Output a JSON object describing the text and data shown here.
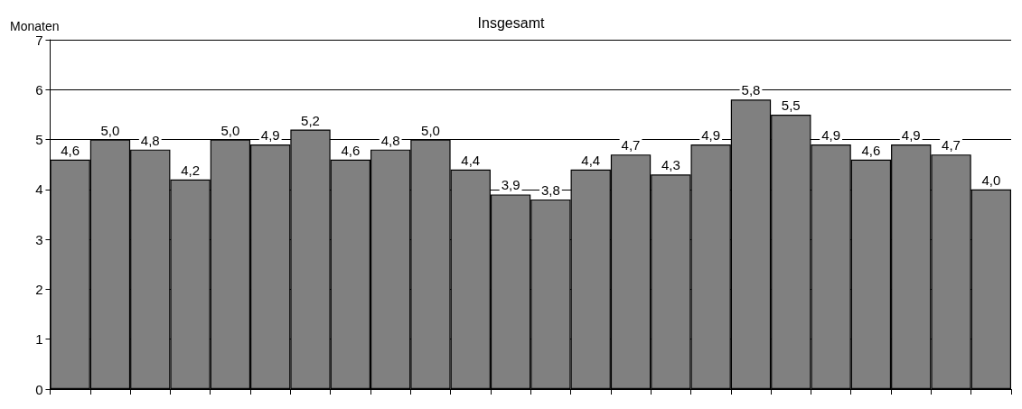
{
  "chart_data": {
    "type": "bar",
    "title": "Insgesamt",
    "ylabel": "Monaten",
    "categories": [
      null,
      null,
      null,
      null,
      null,
      null,
      null,
      null,
      null,
      null,
      null,
      null,
      null,
      null,
      null,
      null,
      null,
      null,
      null,
      null,
      null,
      null,
      null,
      null
    ],
    "values": [
      4.6,
      5.0,
      4.8,
      4.2,
      5.0,
      4.9,
      5.2,
      4.6,
      4.8,
      5.0,
      4.4,
      3.9,
      3.8,
      4.4,
      4.7,
      4.3,
      4.9,
      5.8,
      5.5,
      4.9,
      4.6,
      4.9,
      4.7,
      4.0
    ],
    "value_labels": [
      "4,6",
      "5,0",
      "4,8",
      "4,2",
      "5,0",
      "4,9",
      "5,2",
      "4,6",
      "4,8",
      "5,0",
      "4,4",
      "3,9",
      "3,8",
      "4,4",
      "4,7",
      "4,3",
      "4,9",
      "5,8",
      "5,5",
      "4,9",
      "4,6",
      "4,9",
      "4,7",
      "4,0"
    ],
    "color": "#808080",
    "ylim": [
      0,
      7
    ],
    "yticks": [
      0,
      1,
      2,
      3,
      4,
      5,
      6,
      7
    ],
    "grid": "y"
  }
}
